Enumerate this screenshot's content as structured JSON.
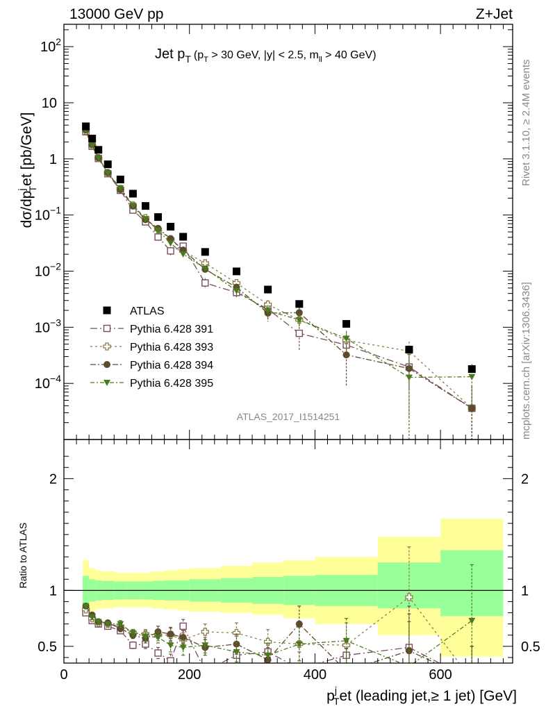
{
  "header": {
    "left": "13000 GeV pp",
    "right": "Z+Jet"
  },
  "plot_title": {
    "main": "Jet p",
    "main_sub": "T",
    "cond_a": "(p",
    "cond_a_sub": "T",
    "cond_b": " > 30 GeV, |y| < 2.5, m",
    "cond_b_sub": "ll",
    "cond_c": " > 40 GeV)"
  },
  "y_axis_label": {
    "a": "dσ/dp",
    "sub": "T",
    "sup": "j",
    "b": "et [pb/GeV]"
  },
  "x_axis_label": {
    "a": "p",
    "sup": "j",
    "sub": "T",
    "b": "et (leading jet,≥ 1 jet) [GeV]"
  },
  "ratio_label": "Ratio to ATLAS",
  "side_text": {
    "rivet": "Rivet 3.1.10, ≥ 2.4M events",
    "mcplots": "mcplots.cern.ch [arXiv:1306.3436]"
  },
  "analysis_id": "ATLAS_2017_I1514251",
  "chart_data": {
    "type": "scatter",
    "x_range": [
      0,
      715
    ],
    "y_range_log": [
      1e-05,
      250
    ],
    "ratio_range": [
      0.35,
      2.35
    ],
    "y_ticks": [
      {
        "value": 100,
        "mant": "10",
        "exp": "2"
      },
      {
        "value": 10,
        "mant": "10",
        "exp": ""
      },
      {
        "value": 1,
        "mant": "1",
        "exp": ""
      },
      {
        "value": 0.1,
        "mant": "10",
        "exp": "−1"
      },
      {
        "value": 0.01,
        "mant": "10",
        "exp": "−2"
      },
      {
        "value": 0.001,
        "mant": "10",
        "exp": "−3"
      },
      {
        "value": 0.0001,
        "mant": "10",
        "exp": "−4"
      }
    ],
    "x_ticks": [
      {
        "value": 0,
        "label": "0"
      },
      {
        "value": 200,
        "label": "200"
      },
      {
        "value": 400,
        "label": "400"
      },
      {
        "value": 600,
        "label": "600"
      }
    ],
    "ratio_ticks": [
      {
        "value": 0.5,
        "label": "0.5"
      },
      {
        "value": 1,
        "label": "1"
      },
      {
        "value": 2,
        "label": "2"
      }
    ],
    "x": [
      35,
      45,
      55,
      70,
      90,
      110,
      130,
      150,
      170,
      190,
      225,
      275,
      325,
      375,
      450,
      550,
      650
    ],
    "bins": [
      [
        30,
        40
      ],
      [
        40,
        50
      ],
      [
        50,
        60
      ],
      [
        60,
        80
      ],
      [
        80,
        100
      ],
      [
        100,
        120
      ],
      [
        120,
        140
      ],
      [
        140,
        160
      ],
      [
        160,
        180
      ],
      [
        180,
        200
      ],
      [
        200,
        250
      ],
      [
        250,
        300
      ],
      [
        300,
        350
      ],
      [
        350,
        400
      ],
      [
        400,
        500
      ],
      [
        500,
        600
      ],
      [
        600,
        700
      ]
    ],
    "data": {
      "name": "ATLAS",
      "values": [
        3.8,
        2.3,
        1.45,
        0.8,
        0.43,
        0.24,
        0.145,
        0.092,
        0.062,
        0.041,
        0.022,
        0.0099,
        0.0047,
        0.0026,
        0.00115,
        0.0004,
        0.00018
      ]
    },
    "band_inner": [
      [
        0.87,
        1.13
      ],
      [
        0.9,
        1.1
      ],
      [
        0.91,
        1.09
      ],
      [
        0.915,
        1.085
      ],
      [
        0.92,
        1.08
      ],
      [
        0.92,
        1.08
      ],
      [
        0.92,
        1.08
      ],
      [
        0.915,
        1.085
      ],
      [
        0.91,
        1.09
      ],
      [
        0.91,
        1.09
      ],
      [
        0.9,
        1.1
      ],
      [
        0.89,
        1.11
      ],
      [
        0.88,
        1.12
      ],
      [
        0.87,
        1.13
      ],
      [
        0.86,
        1.14
      ],
      [
        0.84,
        1.25
      ],
      [
        0.77,
        1.36
      ]
    ],
    "band_outer": [
      [
        0.77,
        1.27
      ],
      [
        0.81,
        1.2
      ],
      [
        0.83,
        1.18
      ],
      [
        0.84,
        1.17
      ],
      [
        0.85,
        1.16
      ],
      [
        0.85,
        1.16
      ],
      [
        0.85,
        1.16
      ],
      [
        0.84,
        1.17
      ],
      [
        0.83,
        1.18
      ],
      [
        0.82,
        1.19
      ],
      [
        0.81,
        1.2
      ],
      [
        0.8,
        1.22
      ],
      [
        0.78,
        1.25
      ],
      [
        0.75,
        1.27
      ],
      [
        0.7,
        1.3
      ],
      [
        0.6,
        1.48
      ],
      [
        0.41,
        1.64
      ]
    ],
    "series": [
      {
        "name": "Pythia 6.428 391",
        "marker": "square-open",
        "color": "#7a4b5e",
        "dash": "10,4,2,4",
        "ratio": [
          0.8,
          0.73,
          0.7,
          0.68,
          0.64,
          0.51,
          0.52,
          0.44,
          0.37,
          0.68,
          0.28,
          0.42,
          0.45,
          0.3,
          0.42,
          0.49,
          0.2
        ],
        "err": [
          0.02,
          0.02,
          0.02,
          0.02,
          0.02,
          0.03,
          0.04,
          0.05,
          0.06,
          0.06,
          0.06,
          0.08,
          0.1,
          0.15,
          0.15,
          0.3,
          0.3
        ]
      },
      {
        "name": "Pythia 6.428 393",
        "marker": "cross-open",
        "color": "#8b7c4a",
        "dash": "3,4",
        "ratio": [
          0.83,
          0.75,
          0.71,
          0.7,
          0.68,
          0.62,
          0.61,
          0.6,
          0.6,
          0.56,
          0.63,
          0.62,
          0.54,
          0.52,
          0.51,
          0.94,
          0.2
        ],
        "err": [
          0.02,
          0.02,
          0.02,
          0.02,
          0.03,
          0.03,
          0.04,
          0.05,
          0.06,
          0.06,
          0.07,
          0.09,
          0.11,
          0.15,
          0.2,
          0.45,
          0.3
        ]
      },
      {
        "name": "Pythia 6.428 394",
        "marker": "circle",
        "color": "#5e4a2e",
        "dash": "8,3,2,3",
        "ratio": [
          0.86,
          0.78,
          0.72,
          0.71,
          0.66,
          0.6,
          0.57,
          0.63,
          0.61,
          0.58,
          0.49,
          0.52,
          0.38,
          0.7,
          0.28,
          0.46,
          0.2
        ],
        "err": [
          0.02,
          0.02,
          0.02,
          0.02,
          0.03,
          0.03,
          0.04,
          0.05,
          0.06,
          0.06,
          0.07,
          0.09,
          0.11,
          0.16,
          0.2,
          0.4,
          0.3
        ]
      },
      {
        "name": "Pythia 6.428 395",
        "marker": "triangle-down",
        "color": "#4a7a1e",
        "dash": "6,3,2,3",
        "ratio": [
          0.86,
          0.76,
          0.72,
          0.7,
          0.7,
          0.62,
          0.59,
          0.58,
          0.51,
          0.49,
          0.51,
          0.45,
          0.42,
          0.52,
          0.55,
          0.32,
          0.73
        ],
        "err": [
          0.02,
          0.02,
          0.02,
          0.02,
          0.03,
          0.03,
          0.04,
          0.05,
          0.06,
          0.07,
          0.07,
          0.09,
          0.11,
          0.15,
          0.2,
          0.4,
          0.5
        ]
      }
    ],
    "colors": {
      "band_inner": "#99ff99",
      "band_outer": "#ffff99"
    }
  }
}
